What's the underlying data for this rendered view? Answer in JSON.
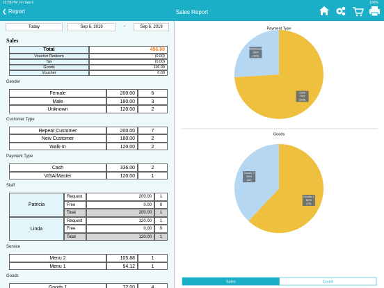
{
  "status": {
    "time": "10:58 PM",
    "date": "Fri Sep 6",
    "battery": "100%"
  },
  "nav": {
    "back": "Report",
    "title": "Sales Report"
  },
  "date_range": {
    "preset": "Today",
    "from": "Sep 6, 2019",
    "separator": "-",
    "to": "Sep 6, 2019"
  },
  "sales": {
    "title": "Sales",
    "rows": [
      [
        "Total",
        "456.00"
      ],
      [
        "Voucher Redeem",
        "(0.00)"
      ],
      [
        "Tax",
        "(0.00)"
      ],
      [
        "Goods",
        "116.00"
      ],
      [
        "Voucher",
        "0.00"
      ]
    ]
  },
  "sections": [
    {
      "title": "Gender",
      "rows": [
        [
          "Female",
          "200.00",
          "6"
        ],
        [
          "Male",
          "180.00",
          "3"
        ],
        [
          "Unknown",
          "120.00",
          "2"
        ]
      ]
    },
    {
      "title": "Customer Type",
      "rows": [
        [
          "Repeat Customer",
          "200.00",
          "7"
        ],
        [
          "New Customer",
          "180.00",
          "2"
        ],
        [
          "Walk-In",
          "120.00",
          "2"
        ]
      ]
    },
    {
      "title": "Payment Type",
      "rows": [
        [
          "Cash",
          "336.00",
          "2"
        ],
        [
          "VISA/Master",
          "120.00",
          "1"
        ]
      ]
    },
    {
      "title": "Staff",
      "people": [
        {
          "name": "Patricia",
          "rows": [
            [
              "Request",
              "200.00",
              "1"
            ],
            [
              "Free",
              "0.00",
              "0"
            ],
            [
              "Total",
              "200.00",
              "1"
            ]
          ]
        },
        {
          "name": "Linda",
          "rows": [
            [
              "Request",
              "120.00",
              "1"
            ],
            [
              "Free",
              "0.00",
              "0"
            ],
            [
              "Total",
              "120.00",
              "1"
            ]
          ]
        }
      ]
    },
    {
      "title": "Service",
      "rows": [
        [
          "Menu 2",
          "105.88",
          "1"
        ],
        [
          "Menu 1",
          "94.12",
          "1"
        ]
      ]
    },
    {
      "title": "Goods",
      "rows": [
        [
          "Goods 1",
          "72.00",
          "4"
        ]
      ]
    }
  ],
  "charts": [
    {
      "type": "pie",
      "title": "Payment Type",
      "categories": [
        "Cash",
        "VISA/Master"
      ],
      "values": [
        74,
        26
      ],
      "value_labels": [
        "74%",
        "26%"
      ],
      "counts": [
        "(336)",
        "(120)"
      ],
      "colors": [
        "#eec03e",
        "#b6d7f2"
      ]
    },
    {
      "type": "pie",
      "title": "Goods",
      "categories": [
        "Goods 1",
        "Goods 2"
      ],
      "values": [
        62,
        38
      ],
      "value_labels": [
        "62%",
        "38%"
      ],
      "counts": [
        "(72)",
        "(44)"
      ],
      "colors": [
        "#eec03e",
        "#b6d7f2"
      ]
    }
  ],
  "tabs": [
    "Sales",
    "Count"
  ]
}
